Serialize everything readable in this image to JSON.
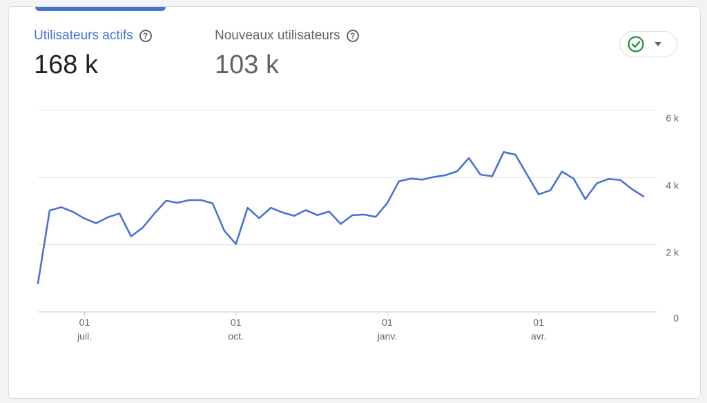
{
  "metrics": [
    {
      "label": "Utilisateurs actifs",
      "value": "168 k",
      "help_icon": "help-circle-icon"
    },
    {
      "label": "Nouveaux utilisateurs",
      "value": "103 k",
      "help_icon": "help-circle-icon"
    }
  ],
  "compare_button": {
    "icon": "check-circle-icon",
    "dropdown_icon": "caret-down-icon",
    "accent": "#1e8e3e"
  },
  "colors": {
    "series": "#4a72d6",
    "active_tab": "#4a72d6"
  },
  "chart_data": {
    "type": "line",
    "ylim": [
      0,
      6000
    ],
    "yticks": [
      {
        "value": 0,
        "label": "0"
      },
      {
        "value": 2000,
        "label": "2 k"
      },
      {
        "value": 4000,
        "label": "4 k"
      },
      {
        "value": 6000,
        "label": "6 k"
      }
    ],
    "xticks": [
      {
        "index": 4,
        "day": "01",
        "month": "juil."
      },
      {
        "index": 17,
        "day": "01",
        "month": "oct."
      },
      {
        "index": 30,
        "day": "01",
        "month": "janv."
      },
      {
        "index": 43,
        "day": "01",
        "month": "avr."
      }
    ],
    "grid": true,
    "series": [
      {
        "values": [
          850,
          3020,
          3120,
          2980,
          2780,
          2640,
          2820,
          2930,
          2250,
          2510,
          2930,
          3310,
          3250,
          3330,
          3330,
          3230,
          2420,
          2020,
          3100,
          2790,
          3100,
          2960,
          2860,
          3030,
          2880,
          2990,
          2620,
          2880,
          2900,
          2830,
          3240,
          3890,
          3970,
          3940,
          4020,
          4070,
          4190,
          4580,
          4090,
          4040,
          4760,
          4680,
          4090,
          3500,
          3620,
          4180,
          3970,
          3360,
          3830,
          3960,
          3930,
          3660,
          3440
        ]
      }
    ]
  }
}
